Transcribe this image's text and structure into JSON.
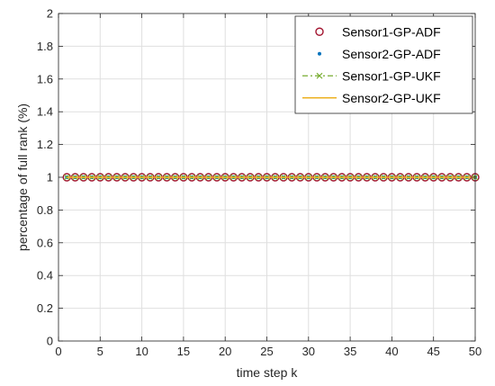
{
  "chart_data": {
    "type": "line",
    "xlabel": "time step k",
    "ylabel": "percentage of full rank (%)",
    "xlim": [
      0,
      50
    ],
    "ylim": [
      0,
      2
    ],
    "xticks": [
      0,
      5,
      10,
      15,
      20,
      25,
      30,
      35,
      40,
      45,
      50
    ],
    "yticks": [
      0,
      0.2,
      0.4,
      0.6,
      0.8,
      1,
      1.2,
      1.4,
      1.6,
      1.8,
      2
    ],
    "xtick_labels": [
      "0",
      "5",
      "10",
      "15",
      "20",
      "25",
      "30",
      "35",
      "40",
      "45",
      "50"
    ],
    "ytick_labels": [
      "0",
      "0.2",
      "0.4",
      "0.6",
      "0.8",
      "1",
      "1.2",
      "1.4",
      "1.6",
      "1.8",
      "2"
    ],
    "grid": true,
    "legend_position": "top-right",
    "x": [
      1,
      2,
      3,
      4,
      5,
      6,
      7,
      8,
      9,
      10,
      11,
      12,
      13,
      14,
      15,
      16,
      17,
      18,
      19,
      20,
      21,
      22,
      23,
      24,
      25,
      26,
      27,
      28,
      29,
      30,
      31,
      32,
      33,
      34,
      35,
      36,
      37,
      38,
      39,
      40,
      41,
      42,
      43,
      44,
      45,
      46,
      47,
      48,
      49,
      50
    ],
    "series": [
      {
        "name": "Sensor1-GP-ADF",
        "style": "marker-circle",
        "color": "#a2142f",
        "values": [
          1,
          1,
          1,
          1,
          1,
          1,
          1,
          1,
          1,
          1,
          1,
          1,
          1,
          1,
          1,
          1,
          1,
          1,
          1,
          1,
          1,
          1,
          1,
          1,
          1,
          1,
          1,
          1,
          1,
          1,
          1,
          1,
          1,
          1,
          1,
          1,
          1,
          1,
          1,
          1,
          1,
          1,
          1,
          1,
          1,
          1,
          1,
          1,
          1,
          1
        ]
      },
      {
        "name": "Sensor2-GP-ADF",
        "style": "marker-dot",
        "color": "#0072bd",
        "values": [
          1,
          1,
          1,
          1,
          1,
          1,
          1,
          1,
          1,
          1,
          1,
          1,
          1,
          1,
          1,
          1,
          1,
          1,
          1,
          1,
          1,
          1,
          1,
          1,
          1,
          1,
          1,
          1,
          1,
          1,
          1,
          1,
          1,
          1,
          1,
          1,
          1,
          1,
          1,
          1,
          1,
          1,
          1,
          1,
          1,
          1,
          1,
          1,
          1,
          1
        ]
      },
      {
        "name": "Sensor1-GP-UKF",
        "style": "dashdot-x",
        "color": "#77ac30",
        "values": [
          1,
          1,
          1,
          1,
          1,
          1,
          1,
          1,
          1,
          1,
          1,
          1,
          1,
          1,
          1,
          1,
          1,
          1,
          1,
          1,
          1,
          1,
          1,
          1,
          1,
          1,
          1,
          1,
          1,
          1,
          1,
          1,
          1,
          1,
          1,
          1,
          1,
          1,
          1,
          1,
          1,
          1,
          1,
          1,
          1,
          1,
          1,
          1,
          1,
          1
        ]
      },
      {
        "name": "Sensor2-GP-UKF",
        "style": "solid",
        "color": "#edb120",
        "values": [
          1,
          1,
          1,
          1,
          1,
          1,
          1,
          1,
          1,
          1,
          1,
          1,
          1,
          1,
          1,
          1,
          1,
          1,
          1,
          1,
          1,
          1,
          1,
          1,
          1,
          1,
          1,
          1,
          1,
          1,
          1,
          1,
          1,
          1,
          1,
          1,
          1,
          1,
          1,
          1,
          1,
          1,
          1,
          1,
          1,
          1,
          1,
          1,
          1,
          1
        ]
      }
    ]
  }
}
